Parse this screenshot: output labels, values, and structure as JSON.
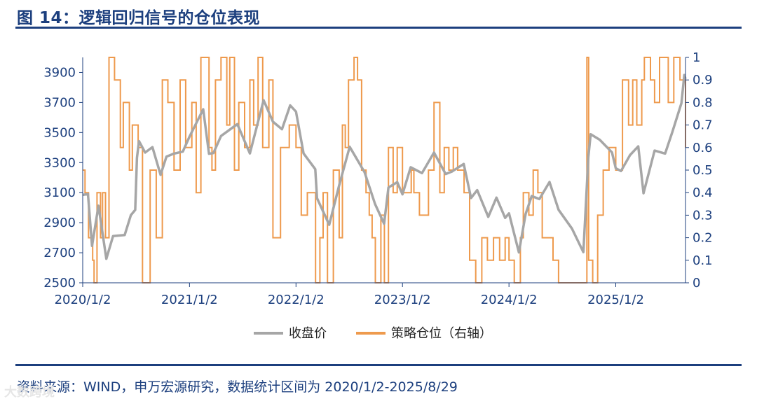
{
  "header": {
    "title": "图 14：逻辑回归信号的仓位表现"
  },
  "footer": {
    "source": "资料来源：WIND，申万宏源研究，数据统计区间为 2020/1/2-2025/8/29",
    "watermark": "大数跨境"
  },
  "colors": {
    "price": "#a6a6a6",
    "position": "#ee9a4d",
    "axis": "#1c3f7e"
  },
  "chart_data": {
    "type": "line",
    "title": "",
    "x_ticks": [
      "2020/1/2",
      "2021/1/2",
      "2022/1/2",
      "2023/1/2",
      "2024/1/2",
      "2025/1/2"
    ],
    "x_range": [
      "2020/1/2",
      "2025/8/29"
    ],
    "y_left": {
      "ticks": [
        2500,
        2700,
        2900,
        3100,
        3300,
        3500,
        3700,
        3900
      ],
      "range": [
        2500,
        4000
      ]
    },
    "y_right": {
      "ticks": [
        0,
        0.1,
        0.2,
        0.3,
        0.4,
        0.5,
        0.6,
        0.7,
        0.8,
        0.9,
        1
      ],
      "range": [
        0,
        1
      ]
    },
    "grid": false,
    "legend_position": "bottom",
    "series": [
      {
        "name": "收盘价",
        "axis": "left",
        "color": "#a6a6a6",
        "points": [
          [
            "2020/1/2",
            3085
          ],
          [
            "2020/1/20",
            3090
          ],
          [
            "2020/2/3",
            2746
          ],
          [
            "2020/2/25",
            3013
          ],
          [
            "2020/3/23",
            2660
          ],
          [
            "2020/4/15",
            2811
          ],
          [
            "2020/5/25",
            2818
          ],
          [
            "2020/6/15",
            2950
          ],
          [
            "2020/6/30",
            2985
          ],
          [
            "2020/7/6",
            3332
          ],
          [
            "2020/7/13",
            3443
          ],
          [
            "2020/8/3",
            3367
          ],
          [
            "2020/8/28",
            3403
          ],
          [
            "2020/9/25",
            3219
          ],
          [
            "2020/10/15",
            3340
          ],
          [
            "2020/11/10",
            3360
          ],
          [
            "2020/12/10",
            3373
          ],
          [
            "2021/1/2",
            3473
          ],
          [
            "2021/2/18",
            3655
          ],
          [
            "2021/3/10",
            3359
          ],
          [
            "2021/3/25",
            3363
          ],
          [
            "2021/4/20",
            3477
          ],
          [
            "2021/6/15",
            3556
          ],
          [
            "2021/7/28",
            3361
          ],
          [
            "2021/9/13",
            3715
          ],
          [
            "2021/10/15",
            3572
          ],
          [
            "2021/11/15",
            3522
          ],
          [
            "2021/12/13",
            3681
          ],
          [
            "2022/1/2",
            3639
          ],
          [
            "2022/1/28",
            3361
          ],
          [
            "2022/3/9",
            3256
          ],
          [
            "2022/3/15",
            3063
          ],
          [
            "2022/4/26",
            2886
          ],
          [
            "2022/5/30",
            3149
          ],
          [
            "2022/7/5",
            3405
          ],
          [
            "2022/8/25",
            3236
          ],
          [
            "2022/9/30",
            3024
          ],
          [
            "2022/10/31",
            2893
          ],
          [
            "2022/11/15",
            3134
          ],
          [
            "2022/12/15",
            3170
          ],
          [
            "2023/1/2",
            3089
          ],
          [
            "2023/1/30",
            3269
          ],
          [
            "2023/3/10",
            3230
          ],
          [
            "2023/4/20",
            3367
          ],
          [
            "2023/5/30",
            3224
          ],
          [
            "2023/6/20",
            3240
          ],
          [
            "2023/7/31",
            3291
          ],
          [
            "2023/8/25",
            3064
          ],
          [
            "2023/9/15",
            3117
          ],
          [
            "2023/10/23",
            2939
          ],
          [
            "2023/11/20",
            3067
          ],
          [
            "2023/12/20",
            2932
          ],
          [
            "2024/1/2",
            2962
          ],
          [
            "2024/2/5",
            2702
          ],
          [
            "2024/2/28",
            2958
          ],
          [
            "2024/3/20",
            3077
          ],
          [
            "2024/4/15",
            3057
          ],
          [
            "2024/5/20",
            3171
          ],
          [
            "2024/6/20",
            2986
          ],
          [
            "2024/8/5",
            2860
          ],
          [
            "2024/9/13",
            2704
          ],
          [
            "2024/9/30",
            3336
          ],
          [
            "2024/10/8",
            3489
          ],
          [
            "2024/11/8",
            3452
          ],
          [
            "2024/12/20",
            3368
          ],
          [
            "2025/1/2",
            3262
          ],
          [
            "2025/1/20",
            3244
          ],
          [
            "2025/2/20",
            3350
          ],
          [
            "2025/3/20",
            3408
          ],
          [
            "2025/4/7",
            3096
          ],
          [
            "2025/5/15",
            3380
          ],
          [
            "2025/6/20",
            3360
          ],
          [
            "2025/7/15",
            3505
          ],
          [
            "2025/8/15",
            3696
          ],
          [
            "2025/8/25",
            3883
          ],
          [
            "2025/8/29",
            3857
          ]
        ]
      },
      {
        "name": "策略仓位（右轴）",
        "axis": "right",
        "color": "#ee9a4d",
        "points": [
          [
            "2020/1/2",
            0.5
          ],
          [
            "2020/1/10",
            0.4
          ],
          [
            "2020/1/22",
            0.2
          ],
          [
            "2020/2/5",
            0.1
          ],
          [
            "2020/2/10",
            0
          ],
          [
            "2020/2/20",
            0.4
          ],
          [
            "2020/3/3",
            0.2
          ],
          [
            "2020/3/10",
            0.4
          ],
          [
            "2020/3/20",
            0.2
          ],
          [
            "2020/4/1",
            1
          ],
          [
            "2020/4/20",
            0.9
          ],
          [
            "2020/5/10",
            0.6
          ],
          [
            "2020/5/20",
            0.8
          ],
          [
            "2020/6/10",
            0.5
          ],
          [
            "2020/6/20",
            0.7
          ],
          [
            "2020/7/10",
            0.6
          ],
          [
            "2020/7/25",
            0
          ],
          [
            "2020/8/20",
            0.5
          ],
          [
            "2020/9/10",
            0.2
          ],
          [
            "2020/10/1",
            0.9
          ],
          [
            "2020/10/20",
            0.8
          ],
          [
            "2020/11/10",
            0.5
          ],
          [
            "2020/12/1",
            0.9
          ],
          [
            "2020/12/20",
            0.6
          ],
          [
            "2021/1/10",
            0.8
          ],
          [
            "2021/1/25",
            0.4
          ],
          [
            "2021/2/10",
            1
          ],
          [
            "2021/3/10",
            0.6
          ],
          [
            "2021/3/20",
            0.5
          ],
          [
            "2021/4/1",
            0.9
          ],
          [
            "2021/4/20",
            1
          ],
          [
            "2021/5/10",
            0.7
          ],
          [
            "2021/5/20",
            1
          ],
          [
            "2021/6/5",
            0.5
          ],
          [
            "2021/6/20",
            0.8
          ],
          [
            "2021/7/10",
            0.6
          ],
          [
            "2021/7/28",
            0.9
          ],
          [
            "2021/8/10",
            0.7
          ],
          [
            "2021/8/25",
            1
          ],
          [
            "2021/9/10",
            0.6
          ],
          [
            "2021/10/1",
            0.9
          ],
          [
            "2021/10/15",
            0.2
          ],
          [
            "2021/11/10",
            0.6
          ],
          [
            "2021/12/10",
            0.7
          ],
          [
            "2022/1/2",
            0.6
          ],
          [
            "2022/1/20",
            0.3
          ],
          [
            "2022/2/10",
            0.4
          ],
          [
            "2022/3/1",
            0.4
          ],
          [
            "2022/3/10",
            0
          ],
          [
            "2022/3/25",
            0.2
          ],
          [
            "2022/4/5",
            0.4
          ],
          [
            "2022/4/20",
            0
          ],
          [
            "2022/5/10",
            0.5
          ],
          [
            "2022/5/30",
            0.2
          ],
          [
            "2022/6/10",
            0.7
          ],
          [
            "2022/6/20",
            0.6
          ],
          [
            "2022/7/1",
            0.9
          ],
          [
            "2022/7/20",
            1
          ],
          [
            "2022/8/1",
            0.9
          ],
          [
            "2022/8/15",
            0.5
          ],
          [
            "2022/8/30",
            0.4
          ],
          [
            "2022/9/10",
            0.3
          ],
          [
            "2022/9/20",
            0.2
          ],
          [
            "2022/10/1",
            0
          ],
          [
            "2022/10/20",
            0.3
          ],
          [
            "2022/11/1",
            0
          ],
          [
            "2022/11/15",
            0.6
          ],
          [
            "2022/12/1",
            0.4
          ],
          [
            "2022/12/15",
            0.6
          ],
          [
            "2023/1/2",
            0.4
          ],
          [
            "2023/1/20",
            0.4
          ],
          [
            "2023/2/1",
            0.5
          ],
          [
            "2023/2/10",
            0.4
          ],
          [
            "2023/3/1",
            0.3
          ],
          [
            "2023/4/1",
            0.5
          ],
          [
            "2023/4/20",
            0.8
          ],
          [
            "2023/5/10",
            0.4
          ],
          [
            "2023/5/25",
            0.6
          ],
          [
            "2023/6/10",
            0.5
          ],
          [
            "2023/6/25",
            0.6
          ],
          [
            "2023/7/10",
            0.5
          ],
          [
            "2023/8/1",
            0.4
          ],
          [
            "2023/8/20",
            0.1
          ],
          [
            "2023/9/10",
            0
          ],
          [
            "2023/10/1",
            0.2
          ],
          [
            "2023/10/20",
            0.1
          ],
          [
            "2023/11/10",
            0.2
          ],
          [
            "2023/12/1",
            0.1
          ],
          [
            "2023/12/20",
            0.2
          ],
          [
            "2024/1/2",
            0.1
          ],
          [
            "2024/1/20",
            0
          ],
          [
            "2024/2/10",
            0.2
          ],
          [
            "2024/2/20",
            0.4
          ],
          [
            "2024/3/10",
            0.3
          ],
          [
            "2024/3/25",
            0.5
          ],
          [
            "2024/4/10",
            0.4
          ],
          [
            "2024/4/25",
            0.2
          ],
          [
            "2024/5/15",
            0.2
          ],
          [
            "2024/6/1",
            0.1
          ],
          [
            "2024/6/20",
            0
          ],
          [
            "2024/7/10",
            0
          ],
          [
            "2024/8/1",
            0
          ],
          [
            "2024/9/10",
            0
          ],
          [
            "2024/9/25",
            1
          ],
          [
            "2024/10/1",
            0.1
          ],
          [
            "2024/10/15",
            0
          ],
          [
            "2024/11/1",
            0.3
          ],
          [
            "2024/11/20",
            0.5
          ],
          [
            "2024/12/10",
            0.6
          ],
          [
            "2025/1/2",
            0.5
          ],
          [
            "2025/1/25",
            0.9
          ],
          [
            "2025/2/15",
            0.7
          ],
          [
            "2025/3/1",
            0.9
          ],
          [
            "2025/3/15",
            0.7
          ],
          [
            "2025/4/1",
            0.9
          ],
          [
            "2025/4/10",
            1
          ],
          [
            "2025/5/1",
            0.9
          ],
          [
            "2025/5/15",
            0.8
          ],
          [
            "2025/6/1",
            1
          ],
          [
            "2025/7/1",
            0.8
          ],
          [
            "2025/7/20",
            1
          ],
          [
            "2025/8/10",
            0.9
          ],
          [
            "2025/8/29",
            0.6
          ]
        ]
      }
    ]
  }
}
